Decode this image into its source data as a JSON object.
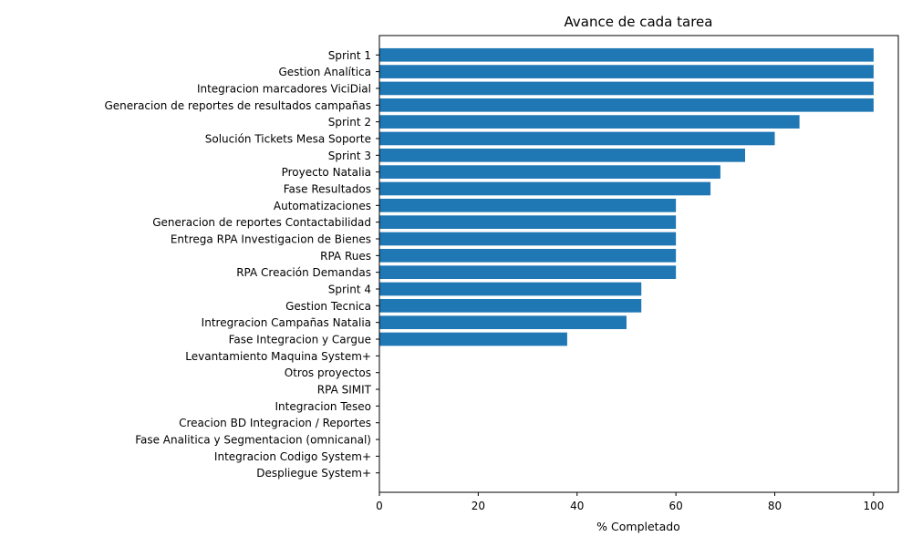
{
  "chart_data": {
    "type": "bar",
    "orientation": "horizontal",
    "title": "Avance de cada tarea",
    "xlabel": "% Completado",
    "ylabel": "",
    "xlim": [
      0,
      105
    ],
    "xticks": [
      0,
      20,
      40,
      60,
      80,
      100
    ],
    "grid": false,
    "bar_color": "#1f77b4",
    "categories": [
      "Sprint 1",
      "Gestion Analítica",
      "Integracion marcadores ViciDial",
      "Generacion de reportes de resultados campañas",
      "Sprint 2",
      "Solución Tickets Mesa Soporte",
      "Sprint 3",
      "Proyecto Natalia",
      "Fase Resultados",
      "Automatizaciones",
      "Generacion de reportes Contactabilidad",
      "Entrega RPA Investigacion de Bienes",
      "RPA Rues",
      "RPA Creación Demandas",
      "Sprint 4",
      "Gestion Tecnica",
      "Intregracion Campañas Natalia",
      "Fase Integracion y Cargue",
      "Levantamiento Maquina System+",
      "Otros proyectos",
      "RPA SIMIT",
      "Integracion Teseo",
      "Creacion BD Integracion / Reportes",
      "Fase Analitica y Segmentacion (omnicanal)",
      "Integracion Codigo System+",
      "Despliegue System+"
    ],
    "values": [
      100,
      100,
      100,
      100,
      85,
      80,
      74,
      69,
      67,
      60,
      60,
      60,
      60,
      60,
      53,
      53,
      50,
      38,
      0,
      0,
      0,
      0,
      0,
      0,
      0,
      0
    ]
  }
}
